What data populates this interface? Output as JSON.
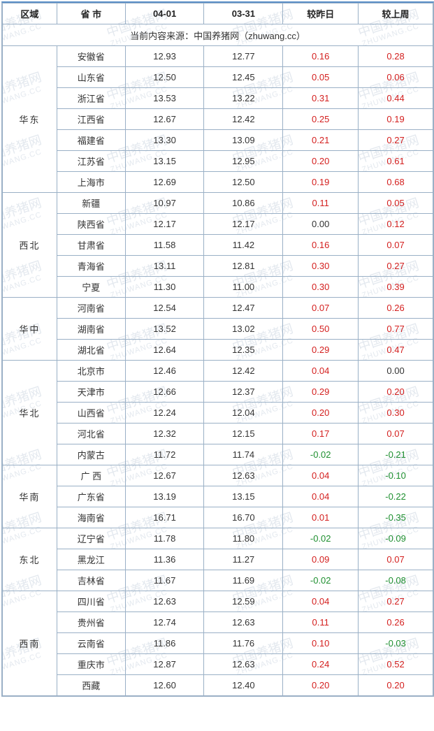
{
  "headers": {
    "region": "区域",
    "province": "省 市",
    "d1": "04-01",
    "d2": "03-31",
    "vs_yesterday": "较昨日",
    "vs_lastweek": "较上周"
  },
  "source_line": "当前内容来源：中国养猪网（zhuwang.cc）",
  "watermark_text": "中国养猪网",
  "watermark_sub": "ZHUWANG.CC",
  "colors": {
    "border": "#9ab0c6",
    "top_border": "#5b8fc7",
    "positive": "#d4201f",
    "negative": "#1e8f2f",
    "neutral": "#333333",
    "watermark": "#e4e9ef"
  },
  "regions": [
    {
      "name": "华东",
      "rows": [
        {
          "prov": "安徽省",
          "d1": "12.93",
          "d2": "12.77",
          "y": "0.16",
          "w": "0.28"
        },
        {
          "prov": "山东省",
          "d1": "12.50",
          "d2": "12.45",
          "y": "0.05",
          "w": "0.06"
        },
        {
          "prov": "浙江省",
          "d1": "13.53",
          "d2": "13.22",
          "y": "0.31",
          "w": "0.44"
        },
        {
          "prov": "江西省",
          "d1": "12.67",
          "d2": "12.42",
          "y": "0.25",
          "w": "0.19"
        },
        {
          "prov": "福建省",
          "d1": "13.30",
          "d2": "13.09",
          "y": "0.21",
          "w": "0.27"
        },
        {
          "prov": "江苏省",
          "d1": "13.15",
          "d2": "12.95",
          "y": "0.20",
          "w": "0.61"
        },
        {
          "prov": "上海市",
          "d1": "12.69",
          "d2": "12.50",
          "y": "0.19",
          "w": "0.68"
        }
      ]
    },
    {
      "name": "西北",
      "rows": [
        {
          "prov": "新疆",
          "d1": "10.97",
          "d2": "10.86",
          "y": "0.11",
          "w": "0.05"
        },
        {
          "prov": "陕西省",
          "d1": "12.17",
          "d2": "12.17",
          "y": "0.00",
          "w": "0.12"
        },
        {
          "prov": "甘肃省",
          "d1": "11.58",
          "d2": "11.42",
          "y": "0.16",
          "w": "0.07"
        },
        {
          "prov": "青海省",
          "d1": "13.11",
          "d2": "12.81",
          "y": "0.30",
          "w": "0.27"
        },
        {
          "prov": "宁夏",
          "d1": "11.30",
          "d2": "11.00",
          "y": "0.30",
          "w": "0.39"
        }
      ]
    },
    {
      "name": "华中",
      "rows": [
        {
          "prov": "河南省",
          "d1": "12.54",
          "d2": "12.47",
          "y": "0.07",
          "w": "0.26"
        },
        {
          "prov": "湖南省",
          "d1": "13.52",
          "d2": "13.02",
          "y": "0.50",
          "w": "0.77"
        },
        {
          "prov": "湖北省",
          "d1": "12.64",
          "d2": "12.35",
          "y": "0.29",
          "w": "0.47"
        }
      ]
    },
    {
      "name": "华北",
      "rows": [
        {
          "prov": "北京市",
          "d1": "12.46",
          "d2": "12.42",
          "y": "0.04",
          "w": "0.00"
        },
        {
          "prov": "天津市",
          "d1": "12.66",
          "d2": "12.37",
          "y": "0.29",
          "w": "0.20"
        },
        {
          "prov": "山西省",
          "d1": "12.24",
          "d2": "12.04",
          "y": "0.20",
          "w": "0.30"
        },
        {
          "prov": "河北省",
          "d1": "12.32",
          "d2": "12.15",
          "y": "0.17",
          "w": "0.07"
        },
        {
          "prov": "内蒙古",
          "d1": "11.72",
          "d2": "11.74",
          "y": "-0.02",
          "w": "-0.21"
        }
      ]
    },
    {
      "name": "华南",
      "rows": [
        {
          "prov": "广 西",
          "d1": "12.67",
          "d2": "12.63",
          "y": "0.04",
          "w": "-0.10"
        },
        {
          "prov": "广东省",
          "d1": "13.19",
          "d2": "13.15",
          "y": "0.04",
          "w": "-0.22"
        },
        {
          "prov": "海南省",
          "d1": "16.71",
          "d2": "16.70",
          "y": "0.01",
          "w": "-0.35"
        }
      ]
    },
    {
      "name": "东北",
      "rows": [
        {
          "prov": "辽宁省",
          "d1": "11.78",
          "d2": "11.80",
          "y": "-0.02",
          "w": "-0.09"
        },
        {
          "prov": "黑龙江",
          "d1": "11.36",
          "d2": "11.27",
          "y": "0.09",
          "w": "0.07"
        },
        {
          "prov": "吉林省",
          "d1": "11.67",
          "d2": "11.69",
          "y": "-0.02",
          "w": "-0.08"
        }
      ]
    },
    {
      "name": "西南",
      "rows": [
        {
          "prov": "四川省",
          "d1": "12.63",
          "d2": "12.59",
          "y": "0.04",
          "w": "0.27"
        },
        {
          "prov": "贵州省",
          "d1": "12.74",
          "d2": "12.63",
          "y": "0.11",
          "w": "0.26"
        },
        {
          "prov": "云南省",
          "d1": "11.86",
          "d2": "11.76",
          "y": "0.10",
          "w": "-0.03"
        },
        {
          "prov": "重庆市",
          "d1": "12.87",
          "d2": "12.63",
          "y": "0.24",
          "w": "0.52"
        },
        {
          "prov": "西藏",
          "d1": "12.60",
          "d2": "12.40",
          "y": "0.20",
          "w": "0.20"
        }
      ]
    }
  ]
}
